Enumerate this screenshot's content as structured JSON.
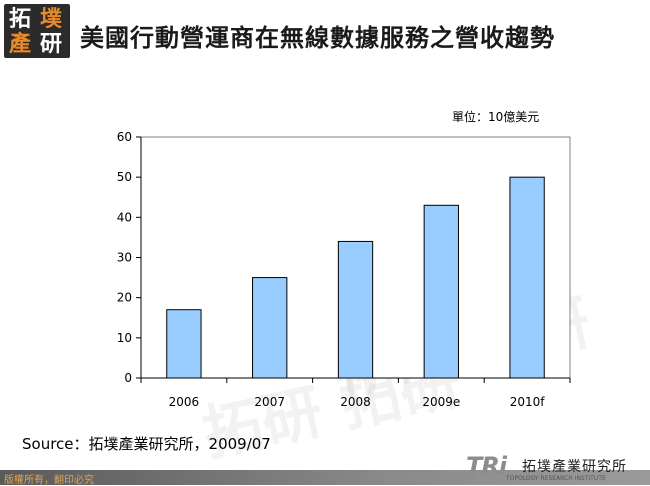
{
  "logo": {
    "chars": [
      "拓",
      "墣",
      "產",
      "研"
    ]
  },
  "header": {
    "title": "美國行動營運商在無線數據服務之營收趨勢"
  },
  "chart_data": {
    "type": "bar",
    "categories": [
      "2006",
      "2007",
      "2008",
      "2009e",
      "2010f"
    ],
    "values": [
      17,
      25,
      34,
      43,
      50
    ],
    "ylim": [
      0,
      60
    ],
    "yticks": [
      0,
      10,
      20,
      30,
      40,
      50,
      60
    ],
    "unit_label": "單位：10億美元",
    "grid": false,
    "bar_color": "#99ccff",
    "bar_stroke": "#000000"
  },
  "source": "Source：拓墣產業研究所，2009/07",
  "footer": {
    "copyright": "版權所有，翻印必究",
    "company_name": "拓墣產業研究所",
    "company_en": "TOPOLOGY RESEARCH INSTITUTE",
    "brand_letters": "TRi"
  },
  "colors": {
    "accent": "#d22222",
    "footer_text": "#e3a54a"
  }
}
